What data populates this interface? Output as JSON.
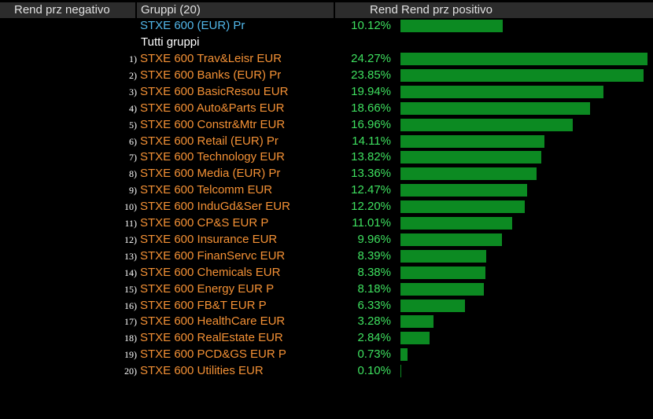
{
  "header": {
    "negative_label": "Rend prz negativo",
    "groups_label": "Gruppi (20)",
    "positive_label": "Rend Rend prz positivo"
  },
  "index_row": {
    "name": "STXE 600 (EUR) Pr",
    "value": "10.12%",
    "fraction": 0.0
  },
  "all_groups_label": "Tutti gruppi",
  "colors": {
    "background": "#000000",
    "header_bg": "#2c2c2c",
    "group_name": "#f49135",
    "index_name": "#52b7ea",
    "value_text": "#3ee05f",
    "bar": "#0c8a22"
  },
  "chart_data": {
    "type": "bar",
    "orientation": "horizontal",
    "xlim": [
      0,
      24.27
    ],
    "index": {
      "name": "STXE 600 (EUR) Pr",
      "value": 10.12
    },
    "categories": [
      "STXE 600 Trav&Leisr EUR",
      "STXE 600 Banks (EUR) Pr",
      "STXE 600 BasicResou EUR",
      "STXE 600 Auto&Parts EUR",
      "STXE 600 Constr&Mtr EUR",
      "STXE 600 Retail (EUR) Pr",
      "STXE 600 Technology EUR",
      "STXE 600 Media (EUR) Pr",
      "STXE 600 Telcomm EUR",
      "STXE 600 InduGd&Ser EUR",
      "STXE 600 CP&S EUR P",
      "STXE 600 Insurance EUR",
      "STXE 600 FinanServc EUR",
      "STXE 600 Chemicals EUR",
      "STXE 600 Energy EUR P",
      "STXE 600 FB&T EUR P",
      "STXE 600 HealthCare EUR",
      "STXE 600 RealEstate EUR",
      "STXE 600 PCD&GS EUR P",
      "STXE 600 Utilities EUR"
    ],
    "values": [
      24.27,
      23.85,
      19.94,
      18.66,
      16.96,
      14.11,
      13.82,
      13.36,
      12.47,
      12.2,
      11.01,
      9.96,
      8.39,
      8.38,
      8.18,
      6.33,
      3.28,
      2.84,
      0.73,
      0.1
    ],
    "labels": [
      "24.27%",
      "23.85%",
      "19.94%",
      "18.66%",
      "16.96%",
      "14.11%",
      "13.82%",
      "13.36%",
      "12.47%",
      "12.20%",
      "11.01%",
      "9.96%",
      "8.39%",
      "8.38%",
      "8.18%",
      "6.33%",
      "3.28%",
      "2.84%",
      "0.73%",
      "0.10%"
    ],
    "ranks": [
      "1)",
      "2)",
      "3)",
      "4)",
      "5)",
      "6)",
      "7)",
      "8)",
      "9)",
      "10)",
      "11)",
      "12)",
      "13)",
      "14)",
      "15)",
      "16)",
      "17)",
      "18)",
      "19)",
      "20)"
    ]
  }
}
